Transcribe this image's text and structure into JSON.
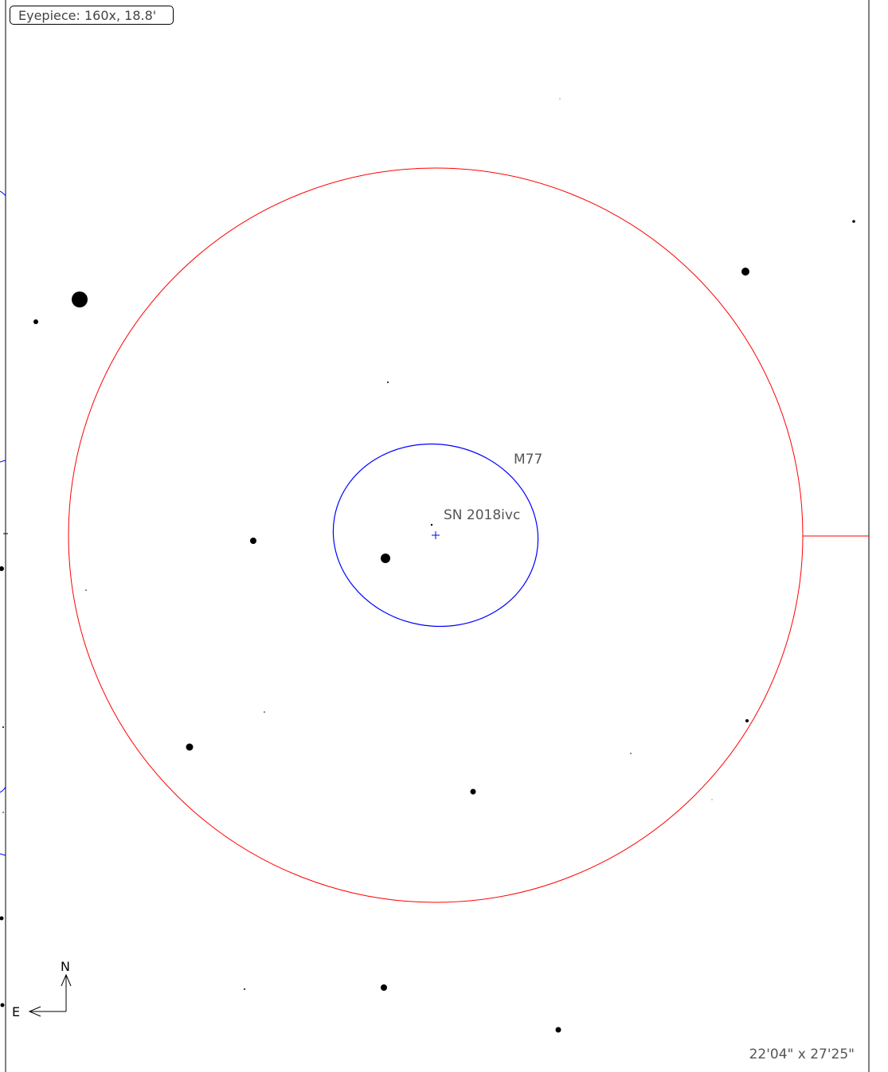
{
  "eyepiece": {
    "label": "Eyepiece: 160x, 18.8'"
  },
  "fov_size": "22'04\" x 27'25\"",
  "compass": {
    "north": "N",
    "east": "E"
  },
  "objects": [
    {
      "name": "M77",
      "type": "galaxy",
      "color": "#0000ff"
    },
    {
      "name": "SN 2018ivc",
      "type": "supernova"
    }
  ],
  "colors": {
    "eyepiece_circle": "#ff0000",
    "galaxy": "#0000ff",
    "stars": "#000000"
  }
}
